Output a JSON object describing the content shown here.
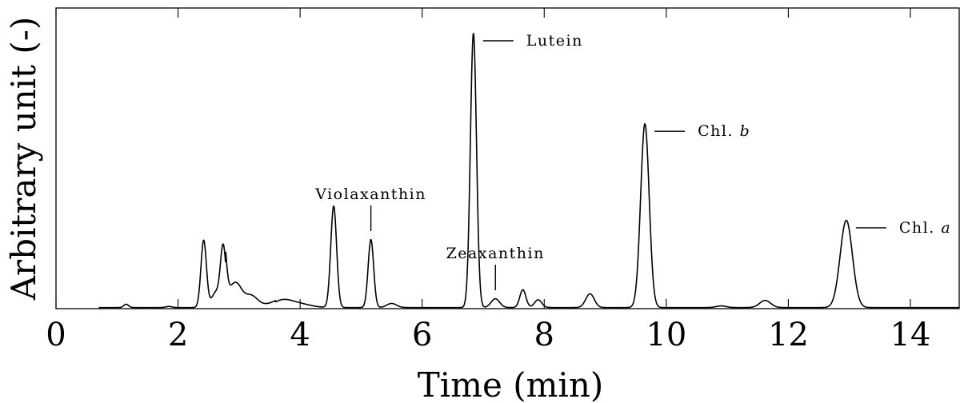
{
  "chart_data": {
    "type": "line",
    "title": "",
    "xlabel": "Time (min)",
    "ylabel": "Arbitrary unit (-)",
    "xlim": [
      0,
      14.8
    ],
    "ylim": [
      0,
      1.0
    ],
    "xticks": [
      0,
      2,
      4,
      6,
      8,
      10,
      12,
      14
    ],
    "xtick_labels": [
      "0",
      "2",
      "4",
      "6",
      "8",
      "10",
      "12",
      "14"
    ],
    "grid": false,
    "legend": "none",
    "series": [
      {
        "peaks": [
          {
            "x": 1.15,
            "y": 0.012,
            "w": 0.04
          },
          {
            "x": 1.85,
            "y": 0.004,
            "w": 0.05
          },
          {
            "x": 2.42,
            "y": 0.245,
            "w": 0.045
          },
          {
            "x": 2.62,
            "y": 0.055,
            "w": 0.07
          },
          {
            "x": 2.74,
            "y": 0.215,
            "w": 0.045
          },
          {
            "x": 2.95,
            "y": 0.06,
            "w": 0.09
          },
          {
            "x": 3.2,
            "y": 0.03,
            "w": 0.1
          },
          {
            "x": 3.7,
            "y": 0.022,
            "w": 0.15
          },
          {
            "x": 3.95,
            "y": 0.015,
            "w": 0.2
          },
          {
            "x": 4.55,
            "y": 0.37,
            "w": 0.048
          },
          {
            "x": 5.16,
            "y": 0.248,
            "w": 0.045
          },
          {
            "x": 5.5,
            "y": 0.015,
            "w": 0.08
          },
          {
            "x": 6.84,
            "y": 1.0,
            "w": 0.05
          },
          {
            "x": 7.2,
            "y": 0.032,
            "w": 0.07
          },
          {
            "x": 7.65,
            "y": 0.065,
            "w": 0.05
          },
          {
            "x": 7.9,
            "y": 0.028,
            "w": 0.06
          },
          {
            "x": 8.75,
            "y": 0.05,
            "w": 0.07
          },
          {
            "x": 9.65,
            "y": 0.67,
            "w": 0.07
          },
          {
            "x": 10.9,
            "y": 0.006,
            "w": 0.08
          },
          {
            "x": 11.62,
            "y": 0.026,
            "w": 0.09
          },
          {
            "x": 12.95,
            "y": 0.318,
            "w": 0.1
          }
        ],
        "baseline": 0.004
      }
    ],
    "annotations": [
      {
        "text": "Violaxanthin",
        "x": 5.16,
        "y": 0.248,
        "position": "above"
      },
      {
        "text": "Lutein",
        "x": 6.84,
        "y": 1.0,
        "position": "right"
      },
      {
        "text": "Zeaxanthin",
        "x": 7.2,
        "y": 0.032,
        "position": "above"
      },
      {
        "text": "Chl. ",
        "italic_suffix": "b",
        "x": 9.65,
        "y": 0.67,
        "position": "right"
      },
      {
        "text": "Chl. ",
        "italic_suffix": "a",
        "x": 12.95,
        "y": 0.318,
        "position": "right"
      }
    ],
    "line_color": "#000000"
  }
}
